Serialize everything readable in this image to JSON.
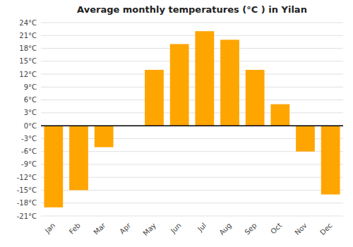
{
  "chart_data": {
    "type": "bar",
    "title": "Average monthly temperatures (°C ) in Yilan",
    "categories": [
      "Jan",
      "Feb",
      "Mar",
      "Apr",
      "May",
      "Jun",
      "Jul",
      "Aug",
      "Sep",
      "Oct",
      "Nov",
      "Dec"
    ],
    "values": [
      -19,
      -15,
      -5,
      0,
      13,
      19,
      22,
      20,
      13,
      5,
      -6,
      -16
    ],
    "color": "#FFA500",
    "ylim": [
      -21,
      24
    ],
    "yticks": [
      {
        "value": -21,
        "label": "-21°C"
      },
      {
        "value": -18,
        "label": "-18°C"
      },
      {
        "value": -15,
        "label": "-15°C"
      },
      {
        "value": -12,
        "label": "-12°C"
      },
      {
        "value": -9,
        "label": "-9°C"
      },
      {
        "value": -6,
        "label": "-6°C"
      },
      {
        "value": -3,
        "label": "-3°C"
      },
      {
        "value": 0,
        "label": "0°C"
      },
      {
        "value": 3,
        "label": "3°C"
      },
      {
        "value": 6,
        "label": "6°C"
      },
      {
        "value": 9,
        "label": "9°C"
      },
      {
        "value": 12,
        "label": "12°C"
      },
      {
        "value": 15,
        "label": "15°C"
      },
      {
        "value": 18,
        "label": "18°C"
      },
      {
        "value": 21,
        "label": "21°C"
      },
      {
        "value": 24,
        "label": "24°C"
      }
    ],
    "grid": true
  }
}
